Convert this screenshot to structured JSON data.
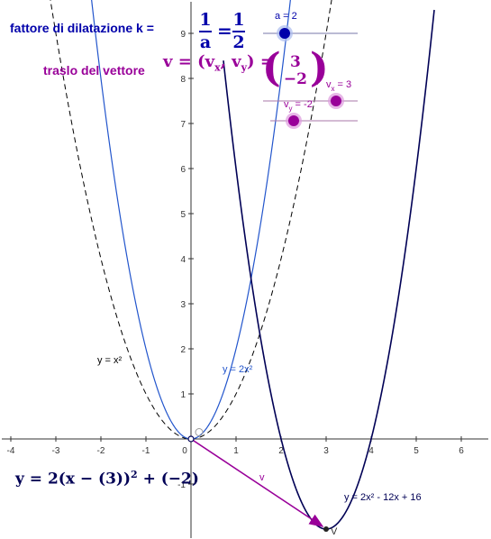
{
  "colors": {
    "blue": "#0000aa",
    "purple": "#990099",
    "dark": "#000055",
    "light_blue": "#2255cc",
    "axis": "#333333"
  },
  "axes": {
    "x_ticks": [
      "-4",
      "-3",
      "-2",
      "-1",
      "0",
      "1",
      "2",
      "3",
      "4",
      "5",
      "6"
    ],
    "y_ticks": [
      "-1",
      "1",
      "2",
      "3",
      "4",
      "5",
      "6",
      "7",
      "8",
      "9"
    ],
    "xlim": [
      -4.2,
      6.6
    ],
    "ylim": [
      -2.2,
      9.7
    ]
  },
  "panel": {
    "k_label": "fattore di dilatazione k =",
    "frac_num_a": "1",
    "frac_den_a": "a",
    "equals": "=",
    "frac_num_b": "1",
    "frac_den_b": "2",
    "vector_label": "traslo del vettore",
    "v_formula_prefix": "v = (v",
    "v_formula_sub_x": "x",
    "v_formula_mid": ", v",
    "v_formula_sub_y": "y",
    "v_formula_suffix": ") =",
    "v_component_x": "3",
    "v_component_y": "−2"
  },
  "sliders": {
    "a_label": "a = 2",
    "vx_label": "v",
    "vx_sub": "x",
    "vx_value": " = 3",
    "vy_label": "v",
    "vy_sub": "y",
    "vy_value": " = -2"
  },
  "curves": {
    "parabola_label": "y = x²",
    "dilated_label": "y = 2x²",
    "translated_label": "y = 2x² - 12x + 16",
    "vector_name": "v",
    "vertex_name": "V"
  },
  "final_equation": {
    "prefix": "y = 2(x − (3))",
    "exponent": "2",
    "suffix": " + (−2)"
  }
}
